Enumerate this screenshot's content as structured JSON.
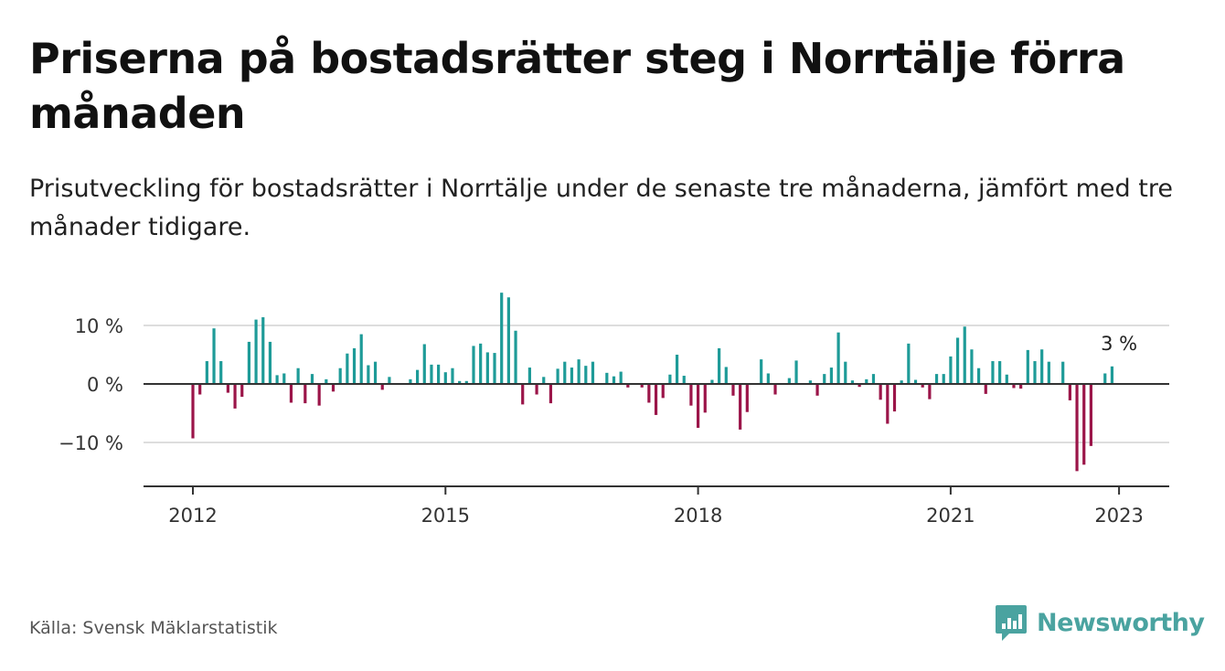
{
  "title": "Priserna på bostadsrätter steg i Norrtälje förra månaden",
  "subtitle": "Prisutveckling för bostadsrätter i Norrtälje under de senaste tre månaderna, jämfört med tre månader tidigare.",
  "source": "Källa: Svensk Mäklarstatistik",
  "brand": {
    "name": "Newsworthy",
    "icon": "newsworthy-logo-icon"
  },
  "colors": {
    "positive": "#1e9b98",
    "negative": "#9b1549",
    "grid": "#dddddd",
    "axis": "#333333"
  },
  "chart_data": {
    "type": "bar",
    "ylabel": "",
    "xlabel": "",
    "ylim": [
      -17,
      17
    ],
    "yticks": [
      {
        "value": 10,
        "label": "10 %"
      },
      {
        "value": 0,
        "label": "0 %"
      },
      {
        "value": -10,
        "label": "−10 %"
      }
    ],
    "xticks": [
      {
        "value": 2012,
        "label": "2012"
      },
      {
        "value": 2015,
        "label": "2015"
      },
      {
        "value": 2018,
        "label": "2018"
      },
      {
        "value": 2021,
        "label": "2021"
      },
      {
        "value": 2023,
        "label": "2023"
      }
    ],
    "start": "2012-01",
    "end": "2023-01",
    "annotation": {
      "label": "3 %",
      "date": "2023-01"
    },
    "series": [
      {
        "values": [
          -9.3,
          -1.8,
          3.9,
          9.5,
          3.9,
          -1.5,
          -4.2,
          -2.2,
          7.2,
          11.0,
          11.4,
          7.2,
          1.5,
          1.8,
          -3.2,
          2.7,
          -3.3,
          1.7,
          -3.7,
          0.8,
          -1.3,
          2.7,
          5.2,
          6.1,
          8.5,
          3.2,
          3.8,
          -1.0,
          1.2,
          0.0,
          0.0,
          0.8,
          2.4,
          6.8,
          3.3,
          3.3,
          2.0,
          2.7,
          0.5,
          0.5,
          6.5,
          6.9,
          5.4,
          5.3,
          15.6,
          14.8,
          9.1,
          -3.5,
          2.8,
          -1.8,
          1.2,
          -3.3,
          2.6,
          3.8,
          2.8,
          4.2,
          3.1,
          3.8,
          0.0,
          1.9,
          1.3,
          2.1,
          -0.6,
          0.0,
          -0.6,
          -3.2,
          -5.3,
          -2.4,
          1.6,
          5.0,
          1.4,
          -3.7,
          -7.5,
          -4.9,
          0.7,
          6.1,
          2.9,
          -2.0,
          -7.8,
          -4.8,
          0.0,
          4.2,
          1.8,
          -1.8,
          0.0,
          1.0,
          4.0,
          0.0,
          0.6,
          -2.0,
          1.7,
          2.8,
          8.8,
          3.8,
          0.6,
          -0.5,
          0.8,
          1.7,
          -2.7,
          -6.8,
          -4.7,
          0.6,
          6.9,
          0.7,
          -0.6,
          -2.6,
          1.7,
          1.7,
          4.7,
          7.9,
          9.8,
          5.9,
          2.7,
          -1.7,
          3.9,
          3.9,
          1.6,
          -0.7,
          -0.8,
          5.8,
          3.9,
          5.9,
          3.8,
          0.0,
          3.8,
          -2.8,
          -14.9,
          -13.8,
          -10.6,
          0.0,
          1.8,
          3.0
        ]
      }
    ]
  }
}
